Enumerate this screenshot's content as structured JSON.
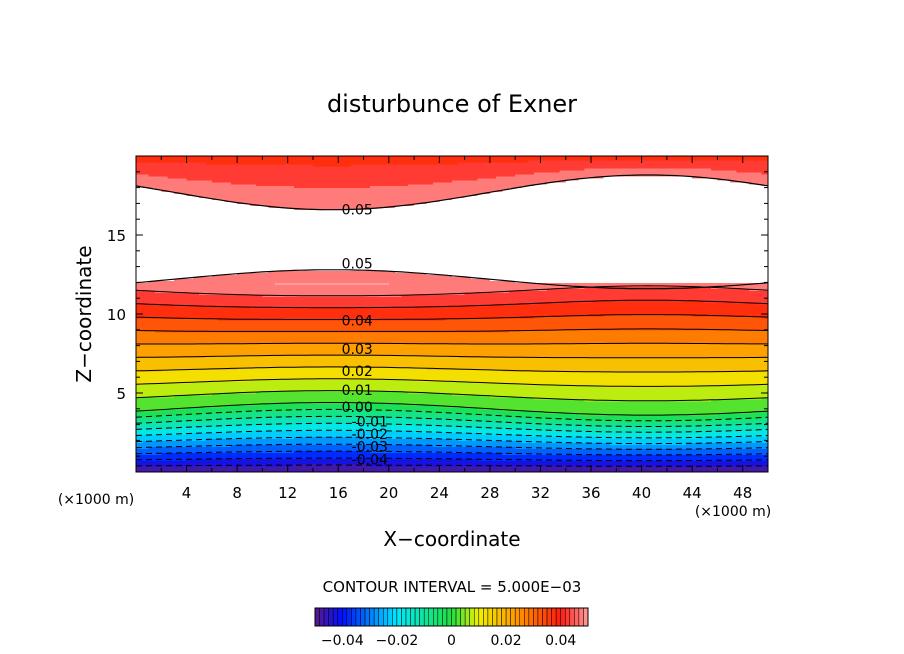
{
  "chart_data": {
    "type": "heatmap",
    "subtype": "filled-contour",
    "title": "disturbunce of Exner",
    "xlabel": "X−coordinate",
    "ylabel": "Z−coordinate",
    "x_unit_left": "(×1000 m)",
    "x_unit_right": "(×1000 m)",
    "xlim": [
      0,
      50
    ],
    "ylim": [
      0,
      20
    ],
    "x_ticks": [
      4,
      8,
      12,
      16,
      20,
      24,
      28,
      32,
      36,
      40,
      44,
      48
    ],
    "x_tick_labels": [
      "4",
      "8",
      "12",
      "16",
      "20",
      "24",
      "28",
      "32",
      "36",
      "40",
      "44",
      "48"
    ],
    "y_ticks": [
      5,
      10,
      15
    ],
    "y_tick_labels": [
      "5",
      "10",
      "15"
    ],
    "contour_interval_text": "CONTOUR INTERVAL = 5.000E−03",
    "contour_interval": 0.005,
    "contour_labels": [
      {
        "text": "0.05",
        "x": 17.5,
        "y": 16.6
      },
      {
        "text": "0.05",
        "x": 17.5,
        "y": 13.2
      },
      {
        "text": "0.04",
        "x": 17.5,
        "y": 9.6
      },
      {
        "text": "0.03",
        "x": 17.5,
        "y": 7.8
      },
      {
        "text": "0.02",
        "x": 17.5,
        "y": 6.4
      },
      {
        "text": "0.01",
        "x": 17.5,
        "y": 5.2
      },
      {
        "text": "0.00",
        "x": 17.5,
        "y": 4.1
      },
      {
        "text": "-0.01",
        "x": 18.5,
        "y": 3.2
      },
      {
        "text": "-0.02",
        "x": 18.5,
        "y": 2.4
      },
      {
        "text": "-0.03",
        "x": 18.5,
        "y": 1.6
      },
      {
        "text": "-0.04",
        "x": 18.5,
        "y": 0.8
      }
    ],
    "colorbar": {
      "range": [
        -0.05,
        0.05
      ],
      "ticks": [
        -0.04,
        -0.02,
        0,
        0.02,
        0.04
      ],
      "tick_labels": [
        "−0.04",
        "−0.02",
        "0",
        "0.02",
        "0.04"
      ]
    },
    "colors": {
      "min": "#5a1a8c",
      "blue": "#0010ff",
      "cyan": "#00e8ff",
      "green": "#20e040",
      "yellow": "#f0f000",
      "orange": "#ff9000",
      "red": "#ff1a10",
      "pink": "#ff9c9c",
      "over_max": "#ffffff"
    }
  }
}
